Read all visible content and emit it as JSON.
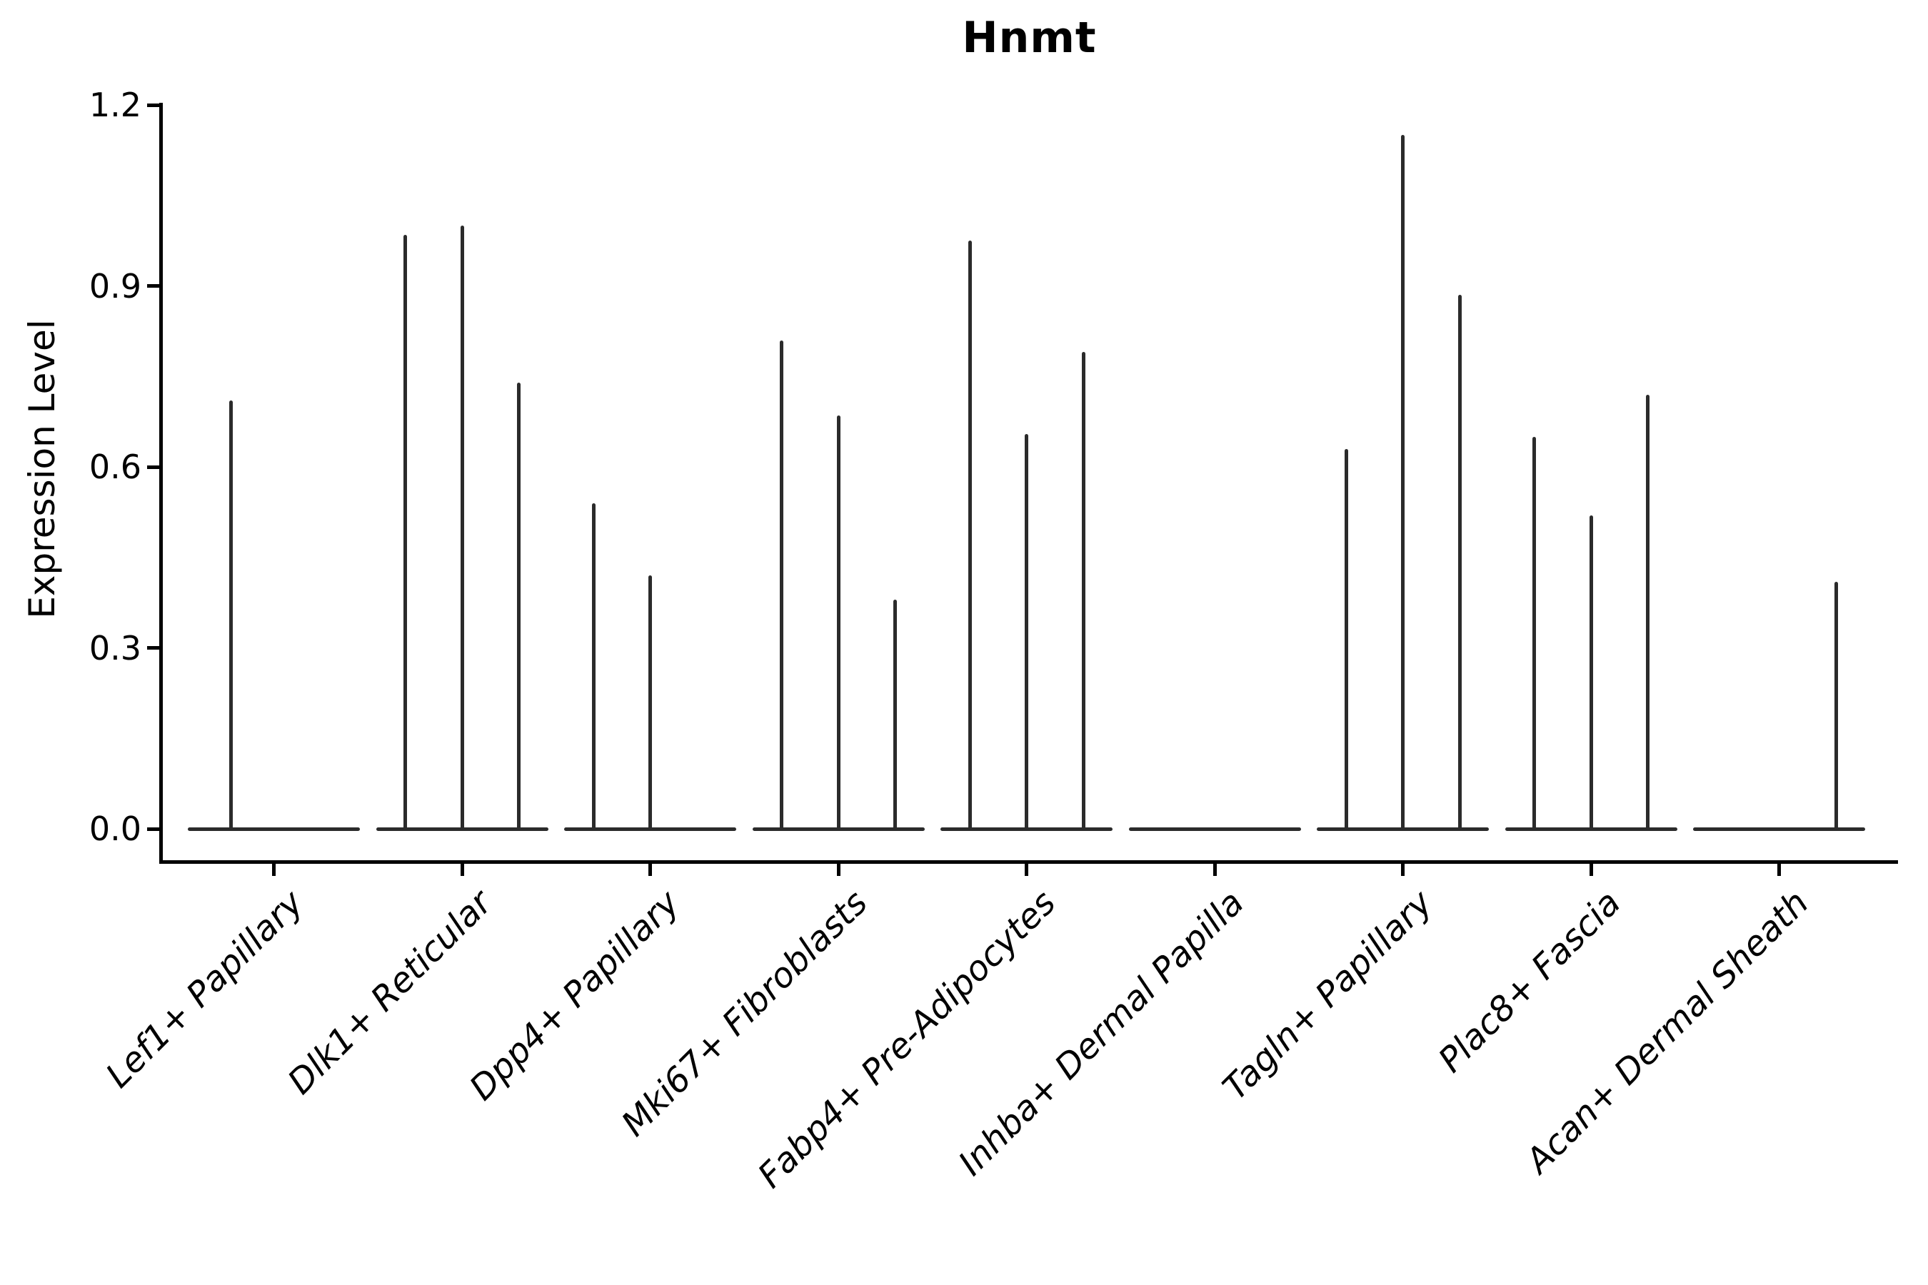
{
  "title": "Hnmt",
  "axes": {
    "ylabel": "Expression Level",
    "y_tick_labels": [
      "0.0",
      "0.3",
      "0.6",
      "0.9",
      "1.2"
    ]
  },
  "colors": {
    "violin_line": "#2b2b2b",
    "axis": "#000000",
    "background": "#ffffff"
  },
  "chart_data": {
    "type": "violin",
    "title": "Hnmt",
    "xlabel": "",
    "ylabel": "Expression Level",
    "ylim": [
      0.0,
      1.2
    ],
    "y_ticks": [
      0.0,
      0.3,
      0.6,
      0.9,
      1.2
    ],
    "grid": false,
    "legend": false,
    "description": "Stacked-violin style expression plot; each category holds 2-3 very thin violins with a flat base at 0 and a narrow spike reaching the listed maximum expression value (0 = flat violin, no spike).",
    "categories": [
      "Lef1+ Papillary",
      "Dlk1+ Reticular",
      "Dpp4+ Papillary",
      "Mki67+ Fibroblasts",
      "Fabp4+ Pre-Adipocytes",
      "Inhba+ Dermal Papilla",
      "Tagln+ Papillary",
      "Plac8+ Fascia",
      "Acan+ Dermal Sheath"
    ],
    "series": [
      {
        "category": "Lef1+ Papillary",
        "violin_maxima": [
          0.71,
          0
        ]
      },
      {
        "category": "Dlk1+ Reticular",
        "violin_maxima": [
          0.985,
          1.0,
          0.74
        ]
      },
      {
        "category": "Dpp4+ Papillary",
        "violin_maxima": [
          0.54,
          0.42,
          0
        ]
      },
      {
        "category": "Mki67+ Fibroblasts",
        "violin_maxima": [
          0.81,
          0.685,
          0.38
        ]
      },
      {
        "category": "Fabp4+ Pre-Adipocytes",
        "violin_maxima": [
          0.975,
          0.655,
          0.79
        ]
      },
      {
        "category": "Inhba+ Dermal Papilla",
        "violin_maxima": [
          0,
          0,
          0
        ]
      },
      {
        "category": "Tagln+ Papillary",
        "violin_maxima": [
          0.63,
          1.15,
          0.885
        ]
      },
      {
        "category": "Plac8+ Fascia",
        "violin_maxima": [
          0.65,
          0.52,
          0.72
        ]
      },
      {
        "category": "Acan+ Dermal Sheath",
        "violin_maxima": [
          0,
          0,
          0.41
        ]
      }
    ]
  }
}
